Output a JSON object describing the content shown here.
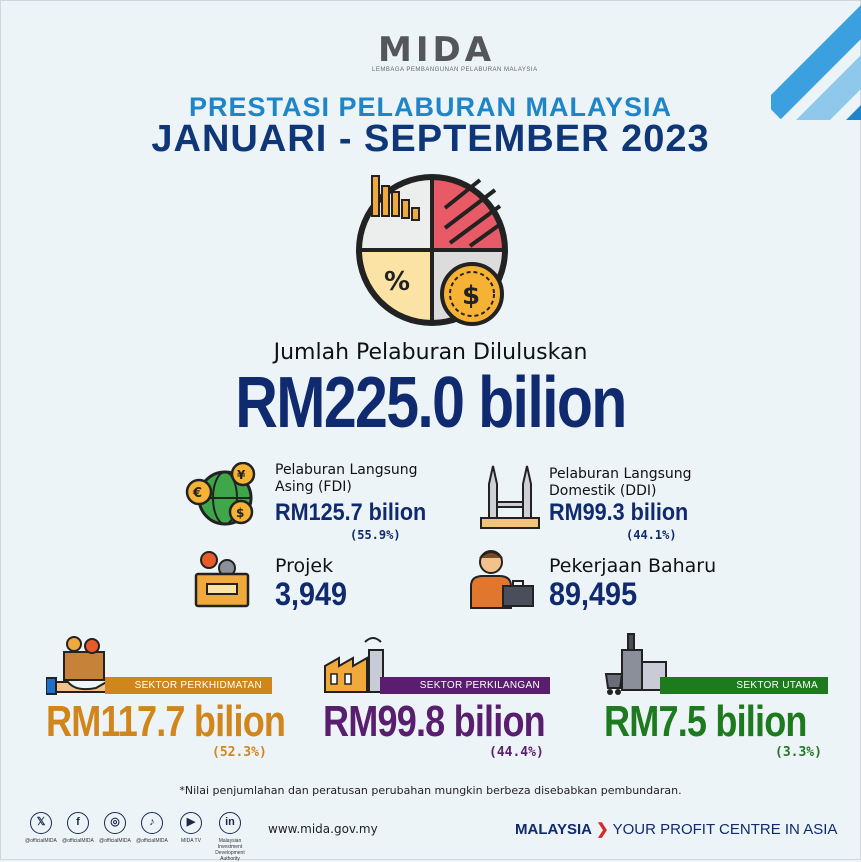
{
  "header": {
    "logo_text": "MIDA",
    "logo_subtitle": "LEMBAGA PEMBANGUNAN PELABURAN MALAYSIA",
    "title_line1": "PRESTASI PELABURAN MALAYSIA",
    "title_line2": "JANUARI - SEPTEMBER 2023"
  },
  "total": {
    "label": "Jumlah Pelaburan Diluluskan",
    "value": "RM225.0 bilion"
  },
  "stats": {
    "fdi": {
      "label_line1": "Pelaburan Langsung",
      "label_line2": "Asing (FDI)",
      "value": "RM125.7 bilion",
      "pct": "(55.9%)",
      "icon": "globe-money-icon"
    },
    "ddi": {
      "label_line1": "Pelaburan Langsung",
      "label_line2": "Domestik (DDI)",
      "value": "RM99.3 bilion",
      "pct": "(44.1%)",
      "icon": "twin-towers-icon"
    },
    "projek": {
      "label": "Projek",
      "value": "3,949",
      "icon": "folder-gears-icon"
    },
    "pekerjaan": {
      "label": "Pekerjaan Baharu",
      "value": "89,495",
      "icon": "businessman-icon"
    }
  },
  "sectors": [
    {
      "label": "SEKTOR PERKHIDMATAN",
      "value": "RM117.7 bilion",
      "pct": "(52.3%)",
      "color": "#d0861b",
      "icon": "service-box-icon"
    },
    {
      "label": "SEKTOR PERKILANGAN",
      "value": "RM99.8 bilion",
      "pct": "(44.4%)",
      "color": "#5a1e6e",
      "icon": "factory-icon"
    },
    {
      "label": "SEKTOR UTAMA",
      "value": "RM7.5 bilion",
      "pct": "(3.3%)",
      "color": "#1e7a1e",
      "icon": "mining-icon"
    }
  ],
  "footnote": "*Nilai penjumlahan dan peratusan perubahan mungkin berbeza disebabkan pembundaran.",
  "footer": {
    "social": [
      {
        "glyph": "𝕏",
        "caption": "@officialMIDA",
        "icon": "x-icon"
      },
      {
        "glyph": "f",
        "caption": "@officialMIDA",
        "icon": "facebook-icon"
      },
      {
        "glyph": "◎",
        "caption": "@officialMIDA",
        "icon": "instagram-icon"
      },
      {
        "glyph": "♪",
        "caption": "@officialMIDA",
        "icon": "tiktok-icon"
      },
      {
        "glyph": "▶",
        "caption": "MIDA TV",
        "icon": "youtube-icon"
      },
      {
        "glyph": "in",
        "caption": "Malaysian Investment Development Authority",
        "icon": "linkedin-icon"
      }
    ],
    "website": "www.mida.gov.my",
    "tagline_bold": "MALAYSIA",
    "tagline_arrow": "❯",
    "tagline_rest": "YOUR PROFIT CENTRE IN ASIA"
  }
}
